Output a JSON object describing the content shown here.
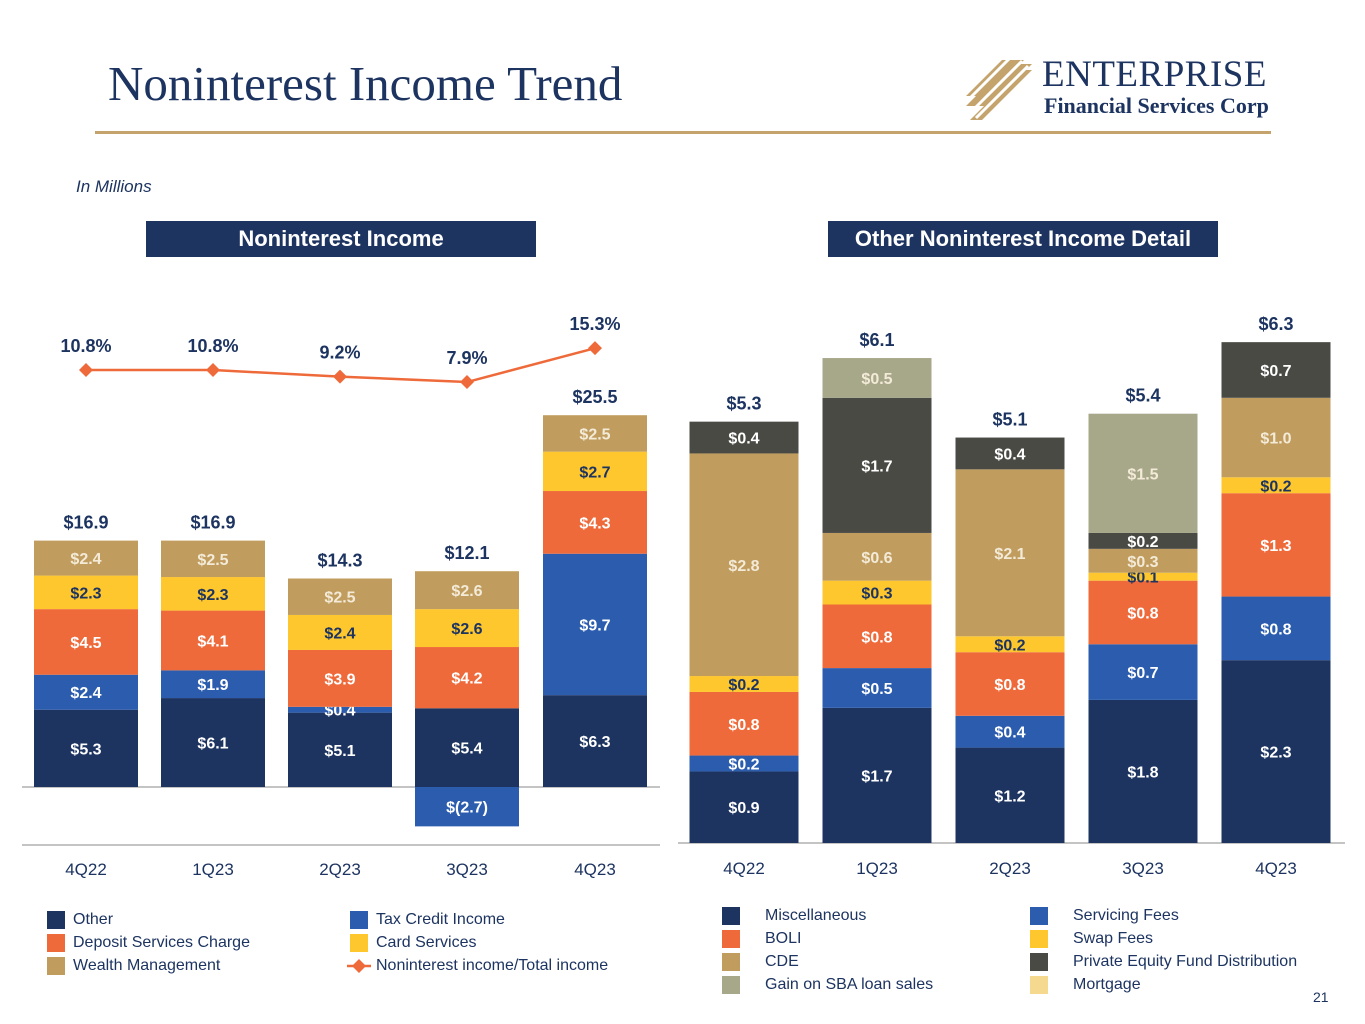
{
  "page": {
    "title": "Noninterest Income Trend",
    "subtitle": "In Millions",
    "page_number": "21"
  },
  "logo": {
    "name": "ENTERPRISE",
    "tagline": "Financial Services Corp"
  },
  "colors": {
    "navy": "#1d3461",
    "blue": "#2b5cad",
    "orange": "#ef6a3a",
    "yellow": "#fec72e",
    "tan": "#c09d5e",
    "sage": "#a7a78a",
    "dark_gray": "#4a4a45",
    "light_yellow": "#f5d98e",
    "gold_rule": "#c4a46c"
  },
  "chart_data": [
    {
      "type": "bar",
      "stacked": true,
      "title": "Noninterest Income",
      "categories": [
        "4Q22",
        "1Q23",
        "2Q23",
        "3Q23",
        "4Q23"
      ],
      "series": [
        {
          "name": "Other",
          "color": "#1d3461",
          "values": [
            5.3,
            6.1,
            5.1,
            5.4,
            6.3
          ],
          "labels": [
            "$5.3",
            "$6.1",
            "$5.1",
            "$5.4",
            "$6.3"
          ]
        },
        {
          "name": "Tax Credit Income",
          "color": "#2b5cad",
          "values": [
            2.4,
            1.9,
            0.4,
            -2.7,
            9.7
          ],
          "labels": [
            "$2.4",
            "$1.9",
            "$0.4",
            "$(2.7)",
            "$9.7"
          ]
        },
        {
          "name": "Deposit Services Charge",
          "color": "#ef6a3a",
          "values": [
            4.5,
            4.1,
            3.9,
            4.2,
            4.3
          ],
          "labels": [
            "$4.5",
            "$4.1",
            "$3.9",
            "$4.2",
            "$4.3"
          ]
        },
        {
          "name": "Card Services",
          "color": "#fec72e",
          "values": [
            2.3,
            2.3,
            2.4,
            2.6,
            2.7
          ],
          "labels": [
            "$2.3",
            "$2.3",
            "$2.4",
            "$2.6",
            "$2.7"
          ]
        },
        {
          "name": "Wealth Management",
          "color": "#c09d5e",
          "values": [
            2.4,
            2.5,
            2.5,
            2.6,
            2.5
          ],
          "labels": [
            "$2.4",
            "$2.5",
            "$2.5",
            "$2.6",
            "$2.5"
          ]
        }
      ],
      "totals": [
        16.9,
        16.9,
        14.3,
        12.1,
        25.5
      ],
      "total_labels": [
        "$16.9",
        "$16.9",
        "$14.3",
        "$12.1",
        "$25.5"
      ],
      "line_series": {
        "name": "Noninterest income/Total income",
        "color": "#ef6a3a",
        "values": [
          10.8,
          10.8,
          9.2,
          7.9,
          15.3
        ],
        "labels": [
          "10.8%",
          "10.8%",
          "9.2%",
          "7.9%",
          "15.3%"
        ]
      },
      "ylim": [
        -3,
        27
      ],
      "legend_position": "bottom",
      "legend": [
        {
          "name": "Other",
          "color": "#1d3461",
          "shape": "square"
        },
        {
          "name": "Tax Credit Income",
          "color": "#2b5cad",
          "shape": "square"
        },
        {
          "name": "Deposit Services Charge",
          "color": "#ef6a3a",
          "shape": "square"
        },
        {
          "name": "Card Services",
          "color": "#fec72e",
          "shape": "square"
        },
        {
          "name": "Wealth Management",
          "color": "#c09d5e",
          "shape": "square"
        },
        {
          "name": "Noninterest income/Total income",
          "color": "#ef6a3a",
          "shape": "line-diamond"
        }
      ]
    },
    {
      "type": "bar",
      "stacked": true,
      "title": "Other Noninterest Income Detail",
      "categories": [
        "4Q22",
        "1Q23",
        "2Q23",
        "3Q23",
        "4Q23"
      ],
      "series": [
        {
          "name": "Miscellaneous",
          "color": "#1d3461",
          "values": [
            0.9,
            1.7,
            1.2,
            1.8,
            2.3
          ],
          "labels": [
            "$0.9",
            "$1.7",
            "$1.2",
            "$1.8",
            "$2.3"
          ]
        },
        {
          "name": "Servicing Fees",
          "color": "#2b5cad",
          "values": [
            0.2,
            0.5,
            0.4,
            0.7,
            0.8
          ],
          "labels": [
            "$0.2",
            "$0.5",
            "$0.4",
            "$0.7",
            "$0.8"
          ]
        },
        {
          "name": "BOLI",
          "color": "#ef6a3a",
          "values": [
            0.8,
            0.8,
            0.8,
            0.8,
            1.3
          ],
          "labels": [
            "$0.8",
            "$0.8",
            "$0.8",
            "$0.8",
            "$1.3"
          ]
        },
        {
          "name": "Swap Fees",
          "color": "#fec72e",
          "values": [
            0.2,
            0.3,
            0.2,
            0.1,
            0.2
          ],
          "labels": [
            "$0.2",
            "$0.3",
            "$0.2",
            "$0.1",
            "$0.2"
          ]
        },
        {
          "name": "CDE",
          "color": "#c09d5e",
          "values": [
            2.8,
            0.6,
            2.1,
            0.3,
            1.0
          ],
          "labels": [
            "$2.8",
            "$0.6",
            "$2.1",
            "$0.3",
            "$1.0"
          ]
        },
        {
          "name": "Private Equity Fund Distribution",
          "color": "#4a4a45",
          "values": [
            0.4,
            1.7,
            0.4,
            0.2,
            0.7
          ],
          "labels": [
            "$0.4",
            "$1.7",
            "$0.4",
            "$0.2",
            "$0.7"
          ]
        },
        {
          "name": "Gain on SBA loan sales",
          "color": "#a7a78a",
          "values": [
            0,
            0.5,
            0,
            1.5,
            0
          ],
          "labels": [
            "",
            "$0.5",
            "",
            "$1.5",
            ""
          ]
        },
        {
          "name": "Mortgage",
          "color": "#f5d98e",
          "values": [
            0,
            0,
            0,
            0,
            0
          ],
          "labels": [
            "",
            "",
            "",
            "",
            ""
          ]
        }
      ],
      "totals": [
        5.3,
        6.1,
        5.1,
        5.4,
        6.3
      ],
      "total_labels": [
        "$5.3",
        "$6.1",
        "$5.1",
        "$5.4",
        "$6.3"
      ],
      "ylim": [
        0,
        6.8
      ],
      "legend_position": "bottom",
      "legend": [
        {
          "name": "Miscellaneous",
          "color": "#1d3461",
          "shape": "square"
        },
        {
          "name": "Servicing Fees",
          "color": "#2b5cad",
          "shape": "square"
        },
        {
          "name": "BOLI",
          "color": "#ef6a3a",
          "shape": "square"
        },
        {
          "name": "Swap Fees",
          "color": "#fec72e",
          "shape": "square"
        },
        {
          "name": "CDE",
          "color": "#c09d5e",
          "shape": "square"
        },
        {
          "name": "Private Equity Fund Distribution",
          "color": "#4a4a45",
          "shape": "square"
        },
        {
          "name": "Gain on SBA loan sales",
          "color": "#a7a78a",
          "shape": "square"
        },
        {
          "name": "Mortgage",
          "color": "#f5d98e",
          "shape": "square"
        }
      ]
    }
  ]
}
